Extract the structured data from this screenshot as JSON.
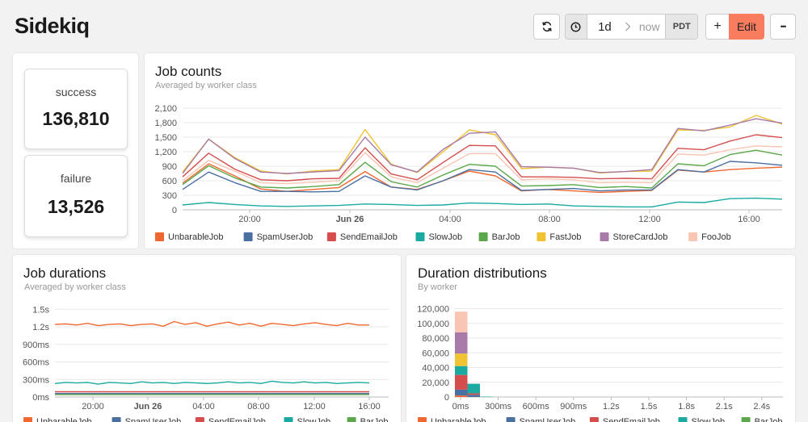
{
  "header": {
    "title": "Sidekiq",
    "time_range": "1d",
    "time_end": "now",
    "timezone": "PDT",
    "add_label": "+",
    "edit_label": "Edit",
    "more_label": "•••",
    "accent": "#f97c5e"
  },
  "stats": {
    "success": {
      "label": "success",
      "value": "136,810"
    },
    "failure": {
      "label": "failure",
      "value": "13,526"
    }
  },
  "job_counts": {
    "title": "Job counts",
    "subtitle": "Averaged by worker class"
  },
  "job_durations": {
    "title": "Job durations",
    "subtitle": "Averaged by worker class"
  },
  "duration_distributions": {
    "title": "Duration distributions",
    "subtitle": "By worker"
  },
  "chart_data": [
    {
      "type": "line",
      "title": "Job counts",
      "subtitle": "Averaged by worker class",
      "x": [
        "18:00",
        "19:00",
        "20:00",
        "21:00",
        "22:00",
        "23:00",
        "Jun 26",
        "01:00",
        "02:00",
        "03:00",
        "04:00",
        "05:00",
        "06:00",
        "07:00",
        "08:00",
        "09:00",
        "10:00",
        "11:00",
        "12:00",
        "13:00",
        "14:00",
        "15:00",
        "16:00",
        "16:30"
      ],
      "x_ticks": [
        "20:00",
        "Jun 26",
        "04:00",
        "08:00",
        "12:00",
        "16:00"
      ],
      "y_ticks": [
        "0",
        "300",
        "600",
        "900",
        "1,200",
        "1,500",
        "1,800",
        "2,100"
      ],
      "ylim": [
        0,
        2200
      ],
      "series": [
        {
          "name": "UnbarableJob",
          "color": "#f0682f",
          "values": [
            550,
            950,
            700,
            430,
            380,
            420,
            460,
            790,
            470,
            420,
            600,
            800,
            700,
            390,
            420,
            390,
            360,
            380,
            400,
            820,
            780,
            830,
            860,
            880
          ]
        },
        {
          "name": "SpamUserJob",
          "color": "#4a6fa1",
          "values": [
            420,
            780,
            560,
            380,
            380,
            370,
            380,
            700,
            470,
            410,
            600,
            830,
            780,
            400,
            420,
            440,
            390,
            410,
            410,
            830,
            780,
            1000,
            970,
            920
          ]
        },
        {
          "name": "SendEmailJob",
          "color": "#d64d4d",
          "values": [
            680,
            1170,
            840,
            620,
            600,
            640,
            650,
            1280,
            740,
            620,
            980,
            1330,
            1320,
            680,
            680,
            670,
            640,
            650,
            640,
            1270,
            1240,
            1420,
            1550,
            1490
          ]
        },
        {
          "name": "SlowJob",
          "color": "#1aaaa2",
          "values": [
            100,
            150,
            110,
            80,
            70,
            80,
            90,
            120,
            110,
            90,
            100,
            140,
            130,
            110,
            120,
            80,
            70,
            60,
            60,
            160,
            150,
            230,
            240,
            220
          ]
        },
        {
          "name": "BarJob",
          "color": "#5ba84a",
          "values": [
            520,
            910,
            660,
            470,
            450,
            480,
            520,
            980,
            580,
            470,
            720,
            940,
            900,
            490,
            500,
            520,
            460,
            480,
            450,
            950,
            910,
            1140,
            1230,
            1130
          ]
        },
        {
          "name": "FastJob",
          "color": "#f0c332",
          "values": [
            780,
            1460,
            1080,
            800,
            740,
            800,
            830,
            1660,
            940,
            770,
            1200,
            1650,
            1550,
            850,
            880,
            860,
            760,
            790,
            800,
            1650,
            1640,
            1710,
            1950,
            1770
          ]
        },
        {
          "name": "StoreCardJob",
          "color": "#a87aa8",
          "values": [
            750,
            1460,
            1060,
            780,
            750,
            780,
            810,
            1500,
            930,
            780,
            1250,
            1580,
            1610,
            890,
            880,
            860,
            770,
            790,
            830,
            1680,
            1630,
            1750,
            1880,
            1790
          ]
        },
        {
          "name": "FooJob",
          "color": "#f8c6b2",
          "values": [
            600,
            1020,
            800,
            560,
            540,
            570,
            600,
            1180,
            680,
            560,
            860,
            1160,
            1160,
            620,
            640,
            620,
            560,
            570,
            560,
            1150,
            1130,
            1240,
            1320,
            1300
          ]
        }
      ]
    },
    {
      "type": "line",
      "title": "Job durations",
      "subtitle": "Averaged by worker class",
      "x_ticks": [
        "20:00",
        "Jun 26",
        "04:00",
        "08:00",
        "12:00",
        "16:00"
      ],
      "y_ticks": [
        "0ms",
        "300ms",
        "600ms",
        "900ms",
        "1.2s",
        "1.5s"
      ],
      "ylim": [
        0,
        1.6
      ],
      "series": [
        {
          "name": "UnbarableJob",
          "color": "#f0682f",
          "values": [
            1.24,
            1.25,
            1.23,
            1.26,
            1.22,
            1.24,
            1.25,
            1.22,
            1.24,
            1.25,
            1.21,
            1.29,
            1.24,
            1.27,
            1.21,
            1.25,
            1.28,
            1.23,
            1.26,
            1.21,
            1.26,
            1.24,
            1.22,
            1.25,
            1.27,
            1.24,
            1.22,
            1.26,
            1.23,
            1.23
          ]
        },
        {
          "name": "SpamUserJob",
          "color": "#4a6fa1",
          "values": [
            0.06,
            0.06,
            0.06,
            0.06,
            0.06,
            0.06,
            0.06,
            0.06,
            0.06,
            0.06,
            0.06,
            0.06,
            0.06,
            0.06,
            0.06,
            0.06,
            0.06,
            0.06,
            0.06,
            0.06,
            0.06,
            0.06,
            0.06,
            0.06,
            0.06,
            0.06,
            0.06,
            0.06,
            0.06,
            0.06
          ]
        },
        {
          "name": "SendEmailJob",
          "color": "#d64d4d",
          "values": [
            0.09,
            0.09,
            0.09,
            0.09,
            0.09,
            0.09,
            0.09,
            0.09,
            0.09,
            0.09,
            0.09,
            0.09,
            0.09,
            0.09,
            0.09,
            0.09,
            0.09,
            0.09,
            0.09,
            0.09,
            0.09,
            0.09,
            0.09,
            0.09,
            0.09,
            0.09,
            0.09,
            0.09,
            0.09,
            0.09
          ]
        },
        {
          "name": "SlowJob",
          "color": "#1aaaa2",
          "values": [
            0.23,
            0.25,
            0.24,
            0.25,
            0.22,
            0.25,
            0.24,
            0.23,
            0.26,
            0.24,
            0.25,
            0.23,
            0.25,
            0.24,
            0.23,
            0.24,
            0.26,
            0.24,
            0.25,
            0.23,
            0.27,
            0.25,
            0.24,
            0.26,
            0.24,
            0.25,
            0.23,
            0.24,
            0.25,
            0.24
          ]
        },
        {
          "name": "BarJob",
          "color": "#5ba84a",
          "values": [
            0.04,
            0.04,
            0.04,
            0.04,
            0.04,
            0.04,
            0.04,
            0.04,
            0.04,
            0.04,
            0.04,
            0.04,
            0.04,
            0.04,
            0.04,
            0.04,
            0.04,
            0.04,
            0.04,
            0.04,
            0.04,
            0.04,
            0.04,
            0.04,
            0.04,
            0.04,
            0.04,
            0.04,
            0.04,
            0.04
          ]
        }
      ]
    },
    {
      "type": "bar",
      "title": "Duration distributions",
      "subtitle": "By worker",
      "stacked": true,
      "x_ticks": [
        "0ms",
        "300ms",
        "600ms",
        "900ms",
        "1.2s",
        "1.5s",
        "1.8s",
        "2.1s",
        "2.4s"
      ],
      "y_ticks": [
        "0",
        "20,000",
        "40,000",
        "60,000",
        "80,000",
        "100,000",
        "120,000"
      ],
      "ylim": [
        0,
        125000
      ],
      "bins": [
        {
          "segments": [
            {
              "name": "UnbarableJob",
              "color": "#f0682f",
              "value": 2000
            },
            {
              "name": "SpamUserJob",
              "color": "#4a6fa1",
              "value": 8000
            },
            {
              "name": "SendEmailJob",
              "color": "#d64d4d",
              "value": 20000
            },
            {
              "name": "SlowJob",
              "color": "#1aaaa2",
              "value": 12000
            },
            {
              "name": "FastJob",
              "color": "#f0c332",
              "value": 17000
            },
            {
              "name": "StoreCardJob",
              "color": "#a87aa8",
              "value": 29000
            },
            {
              "name": "FooJob",
              "color": "#f8c6b2",
              "value": 28000
            }
          ]
        },
        {
          "segments": [
            {
              "name": "SpamUserJob",
              "color": "#4a6fa1",
              "value": 3000
            },
            {
              "name": "SendEmailJob",
              "color": "#d64d4d",
              "value": 2000
            },
            {
              "name": "SlowJob",
              "color": "#1aaaa2",
              "value": 13000
            }
          ]
        },
        {
          "segments": [
            {
              "name": "SlowJob",
              "color": "#1aaaa2",
              "value": 500
            }
          ]
        }
      ]
    }
  ]
}
